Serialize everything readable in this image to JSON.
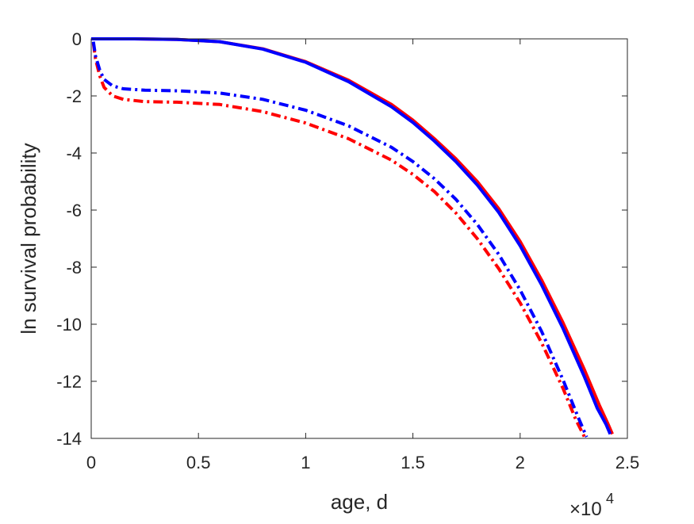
{
  "chart_data": {
    "type": "line",
    "title": "",
    "xlabel": "age, d",
    "ylabel": "ln survival probability",
    "x_multiplier_label": "×10",
    "x_multiplier_exponent": "4",
    "xlim": [
      0,
      2.5
    ],
    "ylim": [
      -14,
      0
    ],
    "xticks": [
      0,
      0.5,
      1,
      1.5,
      2,
      2.5
    ],
    "xtick_labels": [
      "0",
      "0.5",
      "1",
      "1.5",
      "2",
      "2.5"
    ],
    "yticks": [
      0,
      -2,
      -4,
      -6,
      -8,
      -10,
      -12,
      -14
    ],
    "ytick_labels": [
      "0",
      "-2",
      "-4",
      "-6",
      "-8",
      "-10",
      "-12",
      "-14"
    ],
    "grid": false,
    "series": [
      {
        "color": "#ff0000",
        "style": "solid",
        "points": [
          [
            0,
            0
          ],
          [
            0.2,
            0
          ],
          [
            0.4,
            -0.02
          ],
          [
            0.6,
            -0.1
          ],
          [
            0.8,
            -0.35
          ],
          [
            1.0,
            -0.8
          ],
          [
            1.2,
            -1.45
          ],
          [
            1.4,
            -2.3
          ],
          [
            1.5,
            -2.85
          ],
          [
            1.6,
            -3.5
          ],
          [
            1.7,
            -4.2
          ],
          [
            1.8,
            -5.0
          ],
          [
            1.9,
            -5.95
          ],
          [
            2.0,
            -7.1
          ],
          [
            2.1,
            -8.45
          ],
          [
            2.2,
            -9.95
          ],
          [
            2.3,
            -11.6
          ],
          [
            2.37,
            -12.85
          ],
          [
            2.41,
            -13.5
          ],
          [
            2.43,
            -13.85
          ]
        ]
      },
      {
        "color": "#0000ff",
        "style": "solid",
        "points": [
          [
            0,
            0
          ],
          [
            0.2,
            0
          ],
          [
            0.4,
            -0.02
          ],
          [
            0.6,
            -0.1
          ],
          [
            0.8,
            -0.36
          ],
          [
            1.0,
            -0.82
          ],
          [
            1.2,
            -1.5
          ],
          [
            1.4,
            -2.38
          ],
          [
            1.5,
            -2.93
          ],
          [
            1.6,
            -3.58
          ],
          [
            1.7,
            -4.3
          ],
          [
            1.8,
            -5.12
          ],
          [
            1.9,
            -6.08
          ],
          [
            2.0,
            -7.25
          ],
          [
            2.1,
            -8.62
          ],
          [
            2.2,
            -10.15
          ],
          [
            2.3,
            -11.85
          ],
          [
            2.36,
            -12.95
          ],
          [
            2.4,
            -13.5
          ],
          [
            2.42,
            -13.85
          ]
        ]
      },
      {
        "color": "#ff0000",
        "style": "dashdot",
        "points": [
          [
            0.01,
            -0.15
          ],
          [
            0.02,
            -0.7
          ],
          [
            0.04,
            -1.3
          ],
          [
            0.06,
            -1.7
          ],
          [
            0.1,
            -2.0
          ],
          [
            0.15,
            -2.12
          ],
          [
            0.25,
            -2.2
          ],
          [
            0.4,
            -2.22
          ],
          [
            0.6,
            -2.3
          ],
          [
            0.8,
            -2.55
          ],
          [
            1.0,
            -2.95
          ],
          [
            1.2,
            -3.5
          ],
          [
            1.4,
            -4.25
          ],
          [
            1.5,
            -4.75
          ],
          [
            1.6,
            -5.35
          ],
          [
            1.7,
            -6.1
          ],
          [
            1.8,
            -7.0
          ],
          [
            1.9,
            -8.05
          ],
          [
            2.0,
            -9.25
          ],
          [
            2.1,
            -10.65
          ],
          [
            2.2,
            -12.25
          ],
          [
            2.26,
            -13.35
          ],
          [
            2.3,
            -13.95
          ]
        ]
      },
      {
        "color": "#0000ff",
        "style": "dashdot",
        "points": [
          [
            0.01,
            -0.1
          ],
          [
            0.02,
            -0.6
          ],
          [
            0.04,
            -1.1
          ],
          [
            0.06,
            -1.42
          ],
          [
            0.1,
            -1.65
          ],
          [
            0.15,
            -1.75
          ],
          [
            0.25,
            -1.8
          ],
          [
            0.4,
            -1.82
          ],
          [
            0.6,
            -1.9
          ],
          [
            0.8,
            -2.12
          ],
          [
            1.0,
            -2.5
          ],
          [
            1.2,
            -3.05
          ],
          [
            1.4,
            -3.8
          ],
          [
            1.5,
            -4.3
          ],
          [
            1.6,
            -4.9
          ],
          [
            1.7,
            -5.62
          ],
          [
            1.8,
            -6.5
          ],
          [
            1.9,
            -7.55
          ],
          [
            2.0,
            -8.8
          ],
          [
            2.1,
            -10.25
          ],
          [
            2.2,
            -11.95
          ],
          [
            2.27,
            -13.25
          ],
          [
            2.31,
            -13.95
          ]
        ]
      }
    ]
  }
}
